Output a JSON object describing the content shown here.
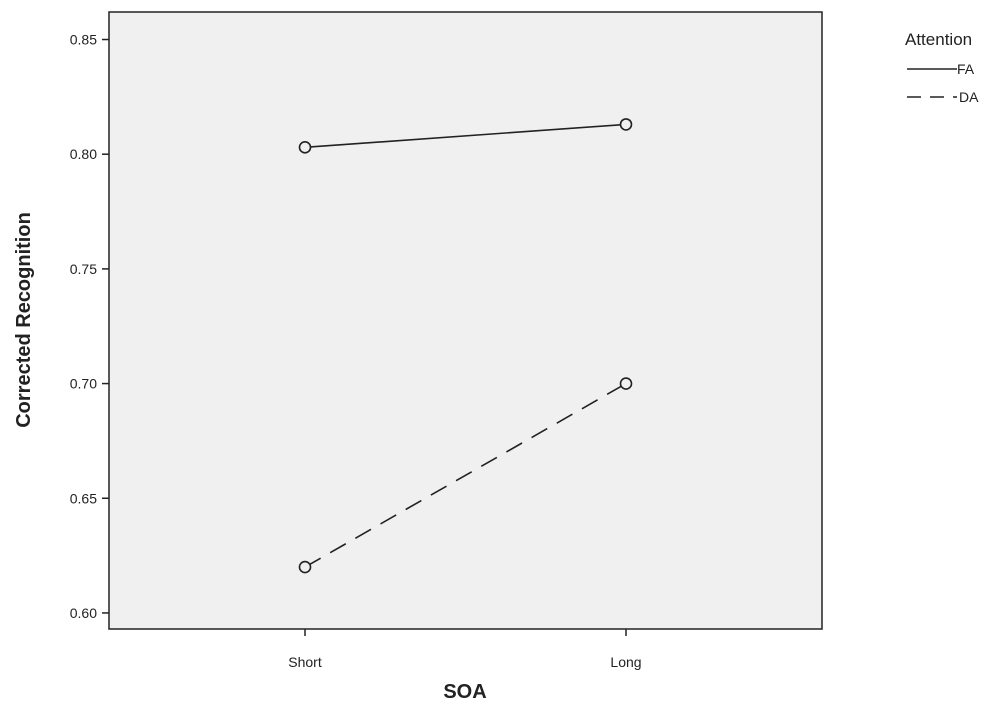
{
  "chart_data": {
    "type": "line",
    "xlabel": "SOA",
    "ylabel": "Corrected Recognition",
    "categories": [
      "Short",
      "Long"
    ],
    "ylim": [
      0.593,
      0.862
    ],
    "yticks": [
      "0.60",
      "0.65",
      "0.70",
      "0.75",
      "0.80",
      "0.85"
    ],
    "grid": false,
    "legend": {
      "title": "Attention",
      "placement": "top-right outside plot"
    },
    "series": [
      {
        "name": "FA",
        "values": [
          0.803,
          0.813
        ],
        "line_style": "solid",
        "marker": "circle"
      },
      {
        "name": "DA",
        "values": [
          0.62,
          0.7
        ],
        "line_style": "dashed",
        "marker": "circle"
      }
    ],
    "colors": {
      "plot_background": "#f0f0f0",
      "line": "#222222",
      "frame": "#222222"
    }
  }
}
